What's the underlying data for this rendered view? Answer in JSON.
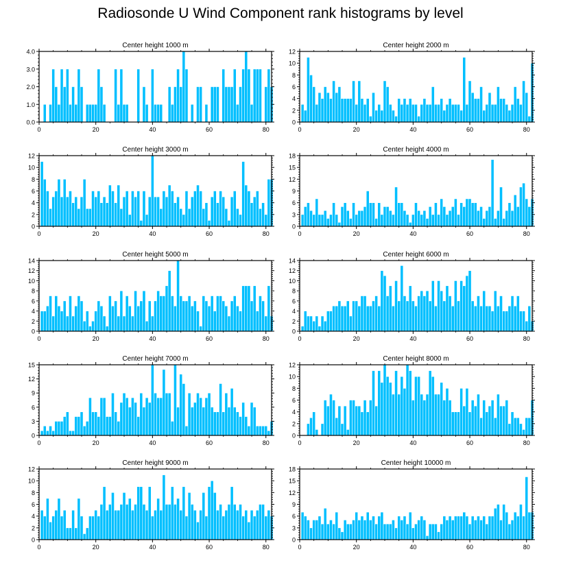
{
  "title": "Radiosonde U Wind Component rank histograms by level",
  "chart_data": [
    {
      "type": "bar",
      "title": "Center height 1000 m",
      "xlim": [
        0,
        82
      ],
      "xticks": [
        0,
        20,
        40,
        60,
        80
      ],
      "ylim": [
        0,
        4
      ],
      "yticks": [
        0,
        1,
        2,
        3,
        4
      ],
      "yticklabels": [
        "0.0",
        "1.0",
        "2.0",
        "3.0",
        "4.0"
      ],
      "values": [
        0,
        1,
        0,
        1,
        3,
        2,
        1,
        3,
        2,
        3,
        1,
        2,
        1,
        3,
        2,
        0,
        1,
        1,
        1,
        1,
        3,
        2,
        1,
        0,
        0,
        0,
        3,
        1,
        3,
        1,
        1,
        0,
        0,
        0,
        3,
        0,
        2,
        1,
        0,
        3,
        1,
        1,
        1,
        0,
        0,
        2,
        1,
        2,
        3,
        2,
        4,
        3,
        0,
        1,
        0,
        2,
        2,
        0,
        1,
        0,
        2,
        2,
        2,
        0,
        3,
        2,
        2,
        2,
        3,
        1,
        2,
        3,
        4,
        3,
        1,
        3,
        3,
        3,
        0,
        2,
        3,
        2
      ]
    },
    {
      "type": "bar",
      "title": "Center height 2000 m",
      "xlim": [
        0,
        82
      ],
      "xticks": [
        0,
        20,
        40,
        60,
        80
      ],
      "ylim": [
        0,
        12
      ],
      "yticks": [
        0,
        2,
        4,
        6,
        8,
        10,
        12
      ],
      "values": [
        3,
        2,
        11,
        8,
        6,
        3,
        5,
        4,
        6,
        5,
        4,
        7,
        5,
        6,
        4,
        4,
        4,
        4,
        7,
        3,
        7,
        4,
        3,
        4,
        1,
        5,
        2,
        3,
        2,
        7,
        6,
        3,
        2,
        1,
        4,
        3,
        4,
        3,
        4,
        3,
        3,
        1,
        3,
        4,
        3,
        3,
        6,
        3,
        3,
        4,
        2,
        3,
        4,
        3,
        3,
        3,
        2,
        11,
        3,
        7,
        5,
        4,
        4,
        6,
        2,
        3,
        5,
        3,
        3,
        6,
        4,
        4,
        3,
        2,
        3,
        6,
        4,
        3,
        7,
        5,
        1,
        10
      ]
    },
    {
      "type": "bar",
      "title": "Center height 3000 m",
      "xlim": [
        0,
        82
      ],
      "xticks": [
        0,
        20,
        40,
        60,
        80
      ],
      "ylim": [
        0,
        12
      ],
      "yticks": [
        0,
        2,
        4,
        6,
        8,
        10,
        12
      ],
      "values": [
        11,
        8,
        6,
        3,
        5,
        6,
        8,
        5,
        8,
        5,
        6,
        4,
        5,
        3,
        5,
        8,
        3,
        3,
        6,
        5,
        6,
        4,
        5,
        4,
        7,
        6,
        4,
        7,
        3,
        5,
        6,
        2,
        6,
        5,
        6,
        1,
        6,
        2,
        5,
        12,
        5,
        5,
        3,
        6,
        5,
        7,
        6,
        4,
        5,
        3,
        2,
        6,
        3,
        5,
        6,
        7,
        6,
        3,
        4,
        1,
        5,
        6,
        4,
        6,
        5,
        3,
        1,
        5,
        6,
        3,
        2,
        11,
        7,
        6,
        4,
        5,
        6,
        3,
        4,
        2,
        8,
        8
      ]
    },
    {
      "type": "bar",
      "title": "Center height 4000 m",
      "xlim": [
        0,
        82
      ],
      "xticks": [
        0,
        20,
        40,
        60,
        80
      ],
      "ylim": [
        0,
        18
      ],
      "yticks": [
        0,
        3,
        6,
        9,
        12,
        15,
        18
      ],
      "values": [
        3,
        5,
        6,
        4,
        3,
        7,
        3,
        3,
        4,
        2,
        3,
        6,
        3,
        1,
        5,
        6,
        4,
        2,
        6,
        3,
        4,
        4,
        5,
        9,
        6,
        6,
        2,
        6,
        3,
        5,
        5,
        4,
        3,
        10,
        6,
        6,
        4,
        3,
        1,
        3,
        6,
        4,
        3,
        4,
        2,
        5,
        3,
        6,
        3,
        7,
        5,
        3,
        4,
        5,
        7,
        3,
        6,
        5,
        7,
        7,
        6,
        6,
        4,
        5,
        2,
        4,
        5,
        17,
        2,
        4,
        10,
        2,
        4,
        6,
        4,
        8,
        5,
        10,
        11,
        7,
        5,
        7
      ]
    },
    {
      "type": "bar",
      "title": "Center height 5000 m",
      "xlim": [
        0,
        82
      ],
      "xticks": [
        0,
        20,
        40,
        60,
        80
      ],
      "ylim": [
        0,
        14
      ],
      "yticks": [
        0,
        2,
        4,
        6,
        8,
        10,
        12,
        14
      ],
      "values": [
        4,
        4,
        5,
        7,
        3,
        7,
        5,
        4,
        6,
        3,
        7,
        3,
        5,
        7,
        6,
        2,
        4,
        1,
        2,
        4,
        6,
        5,
        3,
        1,
        7,
        5,
        6,
        3,
        8,
        3,
        7,
        5,
        3,
        8,
        5,
        6,
        8,
        2,
        6,
        3,
        6,
        8,
        7,
        7,
        9,
        12,
        7,
        5,
        14,
        7,
        6,
        6,
        7,
        5,
        6,
        4,
        1,
        7,
        6,
        5,
        7,
        4,
        7,
        7,
        6,
        5,
        3,
        6,
        7,
        5,
        4,
        9,
        9,
        9,
        6,
        9,
        4,
        7,
        6,
        3,
        9,
        3
      ]
    },
    {
      "type": "bar",
      "title": "Center height 6000 m",
      "xlim": [
        0,
        82
      ],
      "xticks": [
        0,
        20,
        40,
        60,
        80
      ],
      "ylim": [
        0,
        14
      ],
      "yticks": [
        0,
        2,
        4,
        6,
        8,
        10,
        12,
        14
      ],
      "values": [
        1,
        4,
        3,
        3,
        2,
        3,
        1,
        3,
        2,
        4,
        4,
        5,
        5,
        6,
        5,
        5,
        6,
        3,
        6,
        6,
        5,
        7,
        7,
        5,
        5,
        6,
        7,
        5,
        12,
        11,
        7,
        9,
        5,
        10,
        6,
        13,
        7,
        6,
        9,
        6,
        5,
        7,
        8,
        7,
        8,
        6,
        10,
        5,
        10,
        8,
        6,
        9,
        7,
        5,
        10,
        6,
        10,
        9,
        11,
        12,
        6,
        5,
        7,
        5,
        8,
        5,
        5,
        4,
        8,
        5,
        7,
        4,
        4,
        5,
        7,
        5,
        7,
        4,
        4,
        2,
        5,
        2
      ]
    },
    {
      "type": "bar",
      "title": "Center height 7000 m",
      "xlim": [
        0,
        82
      ],
      "xticks": [
        0,
        20,
        40,
        60,
        80
      ],
      "ylim": [
        0,
        15
      ],
      "yticks": [
        0,
        3,
        6,
        9,
        12,
        15
      ],
      "values": [
        1,
        2,
        1,
        2,
        1,
        3,
        3,
        3,
        4,
        5,
        1,
        1,
        4,
        4,
        5,
        2,
        3,
        8,
        5,
        5,
        4,
        8,
        8,
        4,
        4,
        9,
        5,
        3,
        7,
        9,
        8,
        6,
        8,
        7,
        4,
        9,
        6,
        8,
        7,
        15,
        9,
        8,
        8,
        14,
        9,
        9,
        3,
        15,
        6,
        13,
        11,
        2,
        9,
        6,
        7,
        9,
        8,
        6,
        8,
        9,
        6,
        5,
        5,
        11,
        5,
        9,
        6,
        10,
        6,
        5,
        4,
        7,
        4,
        2,
        7,
        6,
        2,
        2,
        2,
        2,
        1,
        3
      ]
    },
    {
      "type": "bar",
      "title": "Center height 8000 m",
      "xlim": [
        0,
        82
      ],
      "xticks": [
        0,
        20,
        40,
        60,
        80
      ],
      "ylim": [
        0,
        12
      ],
      "yticks": [
        0,
        2,
        4,
        6,
        8,
        10,
        12
      ],
      "values": [
        0,
        0,
        2,
        3,
        4,
        1,
        0,
        2,
        6,
        5,
        7,
        6,
        3,
        5,
        2,
        5,
        1,
        6,
        6,
        5,
        5,
        4,
        6,
        4,
        6,
        11,
        5,
        11,
        9,
        12,
        10,
        9,
        7,
        11,
        7,
        10,
        8,
        12,
        11,
        6,
        10,
        10,
        7,
        6,
        7,
        11,
        10,
        7,
        7,
        9,
        6,
        8,
        6,
        4,
        4,
        4,
        8,
        5,
        8,
        4,
        6,
        5,
        7,
        3,
        6,
        4,
        5,
        6,
        3,
        7,
        5,
        5,
        6,
        2,
        4,
        3,
        3,
        2,
        1,
        3,
        3,
        6
      ]
    },
    {
      "type": "bar",
      "title": "Center height 9000 m",
      "xlim": [
        0,
        82
      ],
      "xticks": [
        0,
        20,
        40,
        60,
        80
      ],
      "ylim": [
        0,
        12
      ],
      "yticks": [
        0,
        2,
        4,
        6,
        8,
        10,
        12
      ],
      "values": [
        5,
        4,
        7,
        3,
        4,
        5,
        7,
        4,
        5,
        2,
        2,
        5,
        2,
        7,
        4,
        1,
        2,
        4,
        4,
        5,
        4,
        6,
        9,
        5,
        6,
        8,
        5,
        5,
        6,
        8,
        6,
        7,
        5,
        6,
        9,
        9,
        6,
        5,
        9,
        4,
        5,
        7,
        5,
        11,
        6,
        6,
        9,
        6,
        7,
        5,
        9,
        4,
        8,
        6,
        5,
        3,
        5,
        8,
        4,
        9,
        10,
        8,
        5,
        6,
        4,
        5,
        6,
        9,
        6,
        5,
        6,
        4,
        5,
        3,
        5,
        4,
        5,
        6,
        6,
        4,
        5,
        4
      ]
    },
    {
      "type": "bar",
      "title": "Center height 10000 m",
      "xlim": [
        0,
        82
      ],
      "xticks": [
        0,
        20,
        40,
        60,
        80
      ],
      "ylim": [
        0,
        18
      ],
      "yticks": [
        0,
        3,
        6,
        9,
        12,
        15,
        18
      ],
      "values": [
        7,
        6,
        5,
        3,
        5,
        5,
        6,
        4,
        8,
        4,
        5,
        4,
        7,
        3,
        2,
        5,
        4,
        4,
        5,
        7,
        5,
        6,
        5,
        7,
        5,
        6,
        4,
        6,
        7,
        4,
        4,
        4,
        5,
        3,
        6,
        5,
        6,
        4,
        7,
        3,
        4,
        5,
        6,
        5,
        1,
        4,
        4,
        4,
        2,
        4,
        6,
        5,
        6,
        5,
        6,
        6,
        6,
        7,
        6,
        4,
        6,
        5,
        6,
        5,
        6,
        4,
        6,
        6,
        8,
        9,
        5,
        9,
        7,
        4,
        5,
        7,
        6,
        9,
        6,
        16,
        7,
        7
      ]
    }
  ]
}
